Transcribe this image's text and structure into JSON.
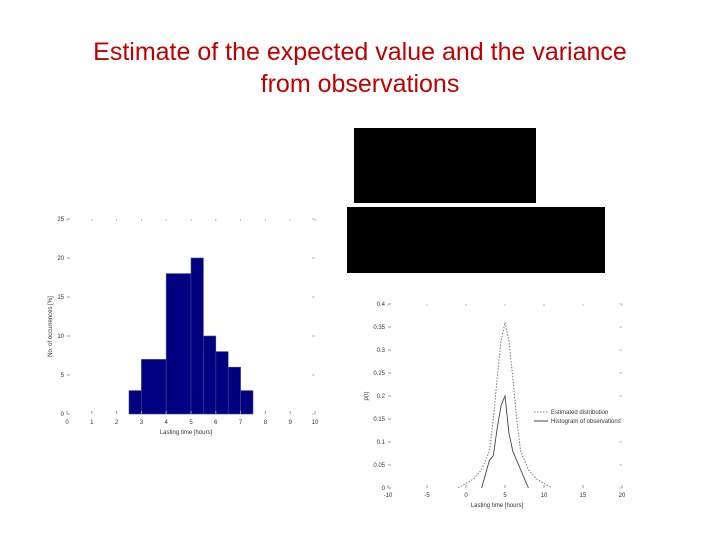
{
  "slide": {
    "title_line1": "Estimate of the expected value and the variance",
    "title_line2": "from observations"
  },
  "chart_data": [
    {
      "type": "bar",
      "ylabel": "No. of occurrences [%]",
      "xlabel": "Lasting time [hours]",
      "xlim": [
        0,
        10
      ],
      "ylim": [
        0,
        25
      ],
      "xticks": [
        "0",
        "1",
        "2",
        "3",
        "4",
        "5",
        "6",
        "7",
        "8",
        "9",
        "10"
      ],
      "yticks": [
        "0",
        "5",
        "10",
        "15",
        "20",
        "25"
      ],
      "bins": [
        {
          "x0": 2.5,
          "x1": 3.0,
          "value": 3
        },
        {
          "x0": 3.0,
          "x1": 4.0,
          "value": 7
        },
        {
          "x0": 4.0,
          "x1": 5.0,
          "value": 18
        },
        {
          "x0": 5.0,
          "x1": 5.5,
          "value": 20
        },
        {
          "x0": 5.5,
          "x1": 6.0,
          "value": 10
        },
        {
          "x0": 6.0,
          "x1": 6.5,
          "value": 8
        },
        {
          "x0": 6.5,
          "x1": 7.0,
          "value": 6
        },
        {
          "x0": 7.0,
          "x1": 7.5,
          "value": 3
        }
      ],
      "bar_color": "#000080",
      "grid": false
    },
    {
      "type": "line",
      "ylabel": "p(t)",
      "xlabel": "Lasting time [hours]",
      "xlim": [
        -10,
        20
      ],
      "ylim": [
        0,
        0.4
      ],
      "xticks": [
        "-10",
        "-5",
        "0",
        "5",
        "10",
        "15",
        "20"
      ],
      "yticks": [
        "0",
        "0.05",
        "0.1",
        "0.15",
        "0.2",
        "0.25",
        "0.3",
        "0.35",
        "0.4"
      ],
      "legend_position": "right",
      "series": [
        {
          "name": "Estimated distribution",
          "style": "dotted",
          "x": [
            -1,
            0,
            1,
            2,
            3,
            3.5,
            4,
            4.5,
            5,
            5.5,
            6,
            6.5,
            7,
            8,
            9,
            10,
            11
          ],
          "y": [
            0.0,
            0.01,
            0.02,
            0.04,
            0.08,
            0.15,
            0.24,
            0.32,
            0.36,
            0.32,
            0.24,
            0.15,
            0.08,
            0.04,
            0.02,
            0.01,
            0.0
          ]
        },
        {
          "name": "Histogram of observations",
          "style": "solid",
          "x": [
            2,
            2.5,
            3,
            3.5,
            4,
            4.5,
            5,
            5.5,
            6,
            6.5,
            7,
            7.5,
            8
          ],
          "y": [
            0.0,
            0.03,
            0.06,
            0.07,
            0.13,
            0.18,
            0.2,
            0.12,
            0.08,
            0.06,
            0.04,
            0.02,
            0.0
          ]
        }
      ]
    }
  ]
}
